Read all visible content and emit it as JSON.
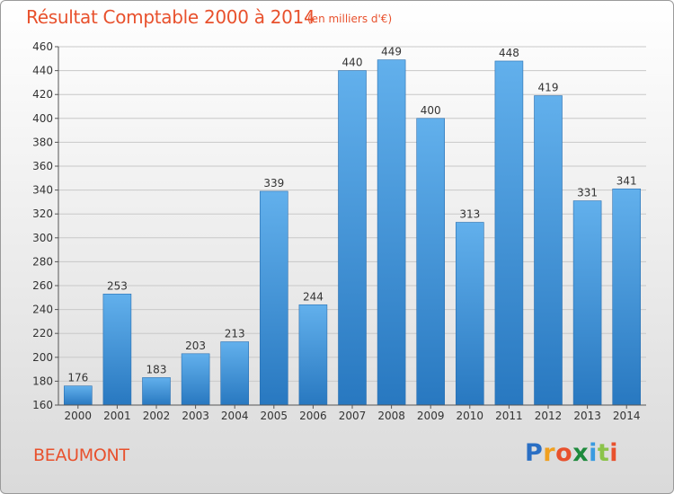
{
  "header": {
    "title": "Résultat Comptable 2000 à 2014",
    "unit_note": "(en milliers d'€)"
  },
  "footer": {
    "town": "BEAUMONT",
    "brand_letters": [
      {
        "char": "P",
        "color": "#2a6fc4"
      },
      {
        "char": "r",
        "color": "#f0a020"
      },
      {
        "char": "o",
        "color": "#e8512d"
      },
      {
        "char": "x",
        "color": "#1e8a3c"
      },
      {
        "char": "i",
        "color": "#3a9be0"
      },
      {
        "char": "t",
        "color": "#8bc34a"
      },
      {
        "char": "i",
        "color": "#e8512d"
      }
    ]
  },
  "colors": {
    "accent": "#e8512d",
    "bar_top": "#62b0ec",
    "bar_bottom": "#2878c0",
    "grid": "#c8c8c8",
    "axis": "#555555"
  },
  "chart_data": {
    "type": "bar",
    "title": "Résultat Comptable 2000 à 2014",
    "xlabel": "",
    "ylabel": "",
    "ylim": [
      160,
      460
    ],
    "yticks": [
      160,
      180,
      200,
      220,
      240,
      260,
      280,
      300,
      320,
      340,
      360,
      380,
      400,
      420,
      440,
      460
    ],
    "grid": true,
    "categories": [
      "2000",
      "2001",
      "2002",
      "2003",
      "2004",
      "2005",
      "2006",
      "2007",
      "2008",
      "2009",
      "2010",
      "2011",
      "2012",
      "2013",
      "2014"
    ],
    "values": [
      176,
      253,
      183,
      203,
      213,
      339,
      244,
      440,
      449,
      400,
      313,
      448,
      419,
      331,
      341
    ]
  }
}
